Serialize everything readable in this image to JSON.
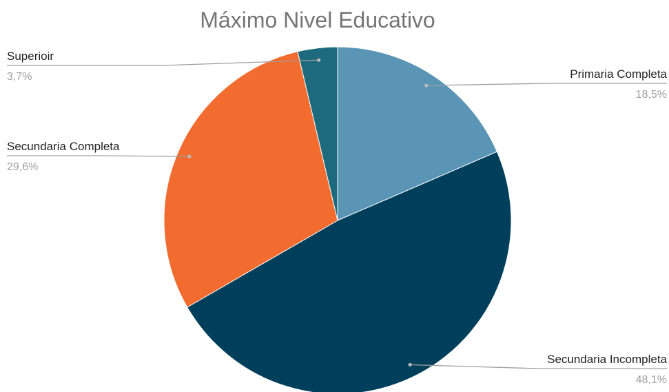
{
  "chart_data": {
    "type": "pie",
    "title": "Máximo Nivel Educativo",
    "legend": "labels-with-leader-lines",
    "slices": [
      {
        "name": "Primaria Completa",
        "value": 18.5,
        "label": "18,5%",
        "color": "#5b95b5"
      },
      {
        "name": "Secundaria Incompleta",
        "value": 48.1,
        "label": "48,1%",
        "color": "#003f5c"
      },
      {
        "name": "Secundaria Completa",
        "value": 29.6,
        "label": "29,6%",
        "color": "#f26b2f"
      },
      {
        "name": "Superioir",
        "value": 3.7,
        "label": "3,7%",
        "color": "#1d6a7d"
      }
    ]
  }
}
